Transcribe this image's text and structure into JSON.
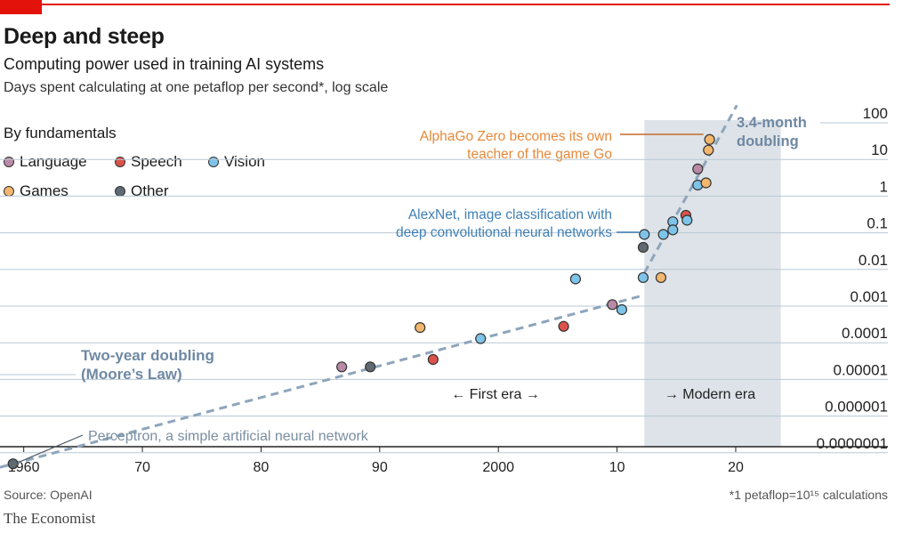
{
  "header": {
    "title": "Deep and steep",
    "subtitle": "Computing power used in training AI systems",
    "subtitle2": "Days spent calculating at one petaflop per second*, log scale"
  },
  "legend": {
    "heading": "By fundamentals",
    "items": [
      {
        "label": "Language",
        "color": "#b88aa6"
      },
      {
        "label": "Speech",
        "color": "#d9534a"
      },
      {
        "label": "Vision",
        "color": "#7ec3e8"
      },
      {
        "label": "Games",
        "color": "#f2b66d"
      },
      {
        "label": "Other",
        "color": "#5f6a72"
      }
    ]
  },
  "footer": {
    "source": "Source: OpenAI",
    "footnote": "*1 petaflop=10¹⁵ calculations",
    "brand": "The Economist"
  },
  "chart_data": {
    "type": "scatter",
    "y_scale": "log",
    "xlim": [
      1958,
      2026
    ],
    "ylim": [
      1e-07,
      100
    ],
    "x_ticks": [
      {
        "value": 1960,
        "label": "1960"
      },
      {
        "value": 1970,
        "label": "70"
      },
      {
        "value": 1980,
        "label": "80"
      },
      {
        "value": 1990,
        "label": "90"
      },
      {
        "value": 2000,
        "label": "2000"
      },
      {
        "value": 2010,
        "label": "10"
      },
      {
        "value": 2020,
        "label": "20"
      }
    ],
    "y_ticks": [
      {
        "value": 100,
        "label": "100"
      },
      {
        "value": 10,
        "label": "10"
      },
      {
        "value": 1,
        "label": "1"
      },
      {
        "value": 0.1,
        "label": "0.1"
      },
      {
        "value": 0.01,
        "label": "0.01"
      },
      {
        "value": 0.001,
        "label": "0.001"
      },
      {
        "value": 0.0001,
        "label": "0.0001"
      },
      {
        "value": 1e-05,
        "label": "0.00001"
      },
      {
        "value": 1e-06,
        "label": "0.000001"
      },
      {
        "value": 1e-07,
        "label": "0.0000001"
      }
    ],
    "modern_era_span": [
      2012.3,
      2023.8
    ],
    "era_labels": {
      "first": "← First era →",
      "modern": "→ Modern era"
    },
    "trend_lines": [
      {
        "label": "Two-year doubling (Moore’s Law)",
        "x": [
          1958,
          2012.3
        ],
        "y": [
          4e-08,
          0.002
        ]
      },
      {
        "label": "3.4-month doubling",
        "x": [
          2012.3,
          2020.1
        ],
        "y": [
          0.008,
          300
        ]
      }
    ],
    "points": [
      {
        "x": 1959.1,
        "y": 5e-08,
        "category": "Other"
      },
      {
        "x": 1986.8,
        "y": 2.2e-05,
        "category": "Language"
      },
      {
        "x": 1989.2,
        "y": 2.2e-05,
        "category": "Other"
      },
      {
        "x": 1993.4,
        "y": 0.00026,
        "category": "Games"
      },
      {
        "x": 1994.5,
        "y": 3.5e-05,
        "category": "Speech"
      },
      {
        "x": 1998.5,
        "y": 0.00013,
        "category": "Vision"
      },
      {
        "x": 2005.5,
        "y": 0.00028,
        "category": "Speech"
      },
      {
        "x": 2006.5,
        "y": 0.0055,
        "category": "Vision"
      },
      {
        "x": 2009.6,
        "y": 0.0011,
        "category": "Language"
      },
      {
        "x": 2010.4,
        "y": 0.0008,
        "category": "Vision"
      },
      {
        "x": 2012.2,
        "y": 0.006,
        "category": "Vision"
      },
      {
        "x": 2012.2,
        "y": 0.04,
        "category": "Other"
      },
      {
        "x": 2012.3,
        "y": 0.09,
        "category": "Vision"
      },
      {
        "x": 2013.7,
        "y": 0.006,
        "category": "Games"
      },
      {
        "x": 2013.9,
        "y": 0.09,
        "category": "Vision"
      },
      {
        "x": 2014.7,
        "y": 0.2,
        "category": "Vision"
      },
      {
        "x": 2014.7,
        "y": 0.12,
        "category": "Vision"
      },
      {
        "x": 2015.8,
        "y": 0.3,
        "category": "Speech"
      },
      {
        "x": 2015.9,
        "y": 0.22,
        "category": "Vision"
      },
      {
        "x": 2016.8,
        "y": 2.0,
        "category": "Vision"
      },
      {
        "x": 2016.8,
        "y": 5.5,
        "category": "Language"
      },
      {
        "x": 2017.5,
        "y": 2.3,
        "category": "Games"
      },
      {
        "x": 2017.7,
        "y": 18,
        "category": "Games"
      },
      {
        "x": 2017.8,
        "y": 35,
        "category": "Games"
      }
    ],
    "annotations": [
      {
        "text": [
          "AlphaGo Zero becomes its own",
          "teacher of the game Go"
        ],
        "color": "#e6893a",
        "anchor_x": 2017.8,
        "anchor_y": 35
      },
      {
        "text": [
          "AlexNet, image classification with",
          "deep convolutional neural networks"
        ],
        "color": "#3f7fb5",
        "anchor_x": 2012.3,
        "anchor_y": 0.09
      },
      {
        "text": [
          "Perceptron, a simple artificial neural network"
        ],
        "color": "#7a8ea0",
        "anchor_x": 1959.1,
        "anchor_y": 5e-08
      },
      {
        "text": [
          "Two-year doubling",
          "(Moore’s Law)"
        ],
        "color": "#6f88a3"
      },
      {
        "text": [
          "3.4-month",
          "doubling"
        ],
        "color": "#6f88a3"
      }
    ]
  }
}
